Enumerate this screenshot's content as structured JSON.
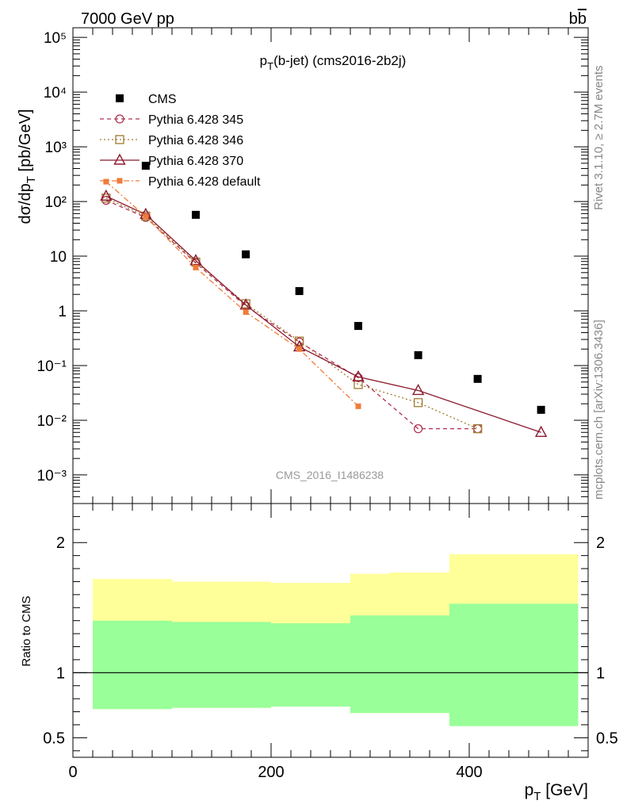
{
  "chart_data": [
    {
      "type": "scatter",
      "panel": "main",
      "title": "p_T(b-jet) (cms2016-2b2j)",
      "corner_left": "7000 GeV pp",
      "corner_right": "b̅b",
      "ylabel": "dσ/dp_T [pb/GeV]",
      "yscale": "log",
      "ylim": [
        0.0003,
        150000
      ],
      "xlim": [
        0,
        520
      ],
      "y_tick_labels": [
        "10⁻³",
        "10⁻²",
        "10⁻¹",
        "1",
        "10",
        "10²",
        "10³",
        "10⁴",
        "10⁵"
      ],
      "watermark": "CMS_2016_I1486238",
      "side_label_top": "Rivet 3.1.10, ≥ 2.7M events",
      "side_label_bottom": "mcplots.cern.ch [arXiv:1306.3436]",
      "legend_position": "top-left",
      "series": [
        {
          "name": "CMS",
          "color": "#000000",
          "marker": "filled-square",
          "x": [
            73.5,
            124,
            174.5,
            228.5,
            288,
            348.5,
            408.5,
            472.5
          ],
          "y": [
            450,
            57,
            10.8,
            2.3,
            0.53,
            0.155,
            0.057,
            0.0155
          ]
        },
        {
          "name": "Pythia 6.428 345",
          "color": "#b03050",
          "marker": "open-circle",
          "dash": "5,4",
          "x": [
            33.5,
            73.5,
            124,
            174.5,
            228.5,
            288,
            348.5,
            408.5
          ],
          "y": [
            105,
            51,
            7.5,
            1.22,
            0.27,
            0.06,
            0.007,
            0.007
          ]
        },
        {
          "name": "Pythia 6.428 346",
          "color": "#a07a30",
          "marker": "open-square",
          "dash": "2,3",
          "x": [
            33.5,
            73.5,
            124,
            174.5,
            228.5,
            288,
            348.5,
            408.5
          ],
          "y": [
            115,
            54,
            7.8,
            1.35,
            0.28,
            0.045,
            0.021,
            0.007
          ]
        },
        {
          "name": "Pythia 6.428 370",
          "color": "#8b1a2e",
          "marker": "open-triangle",
          "dash": "",
          "x": [
            33.5,
            73.5,
            124,
            174.5,
            228.5,
            288,
            348.5,
            472.5
          ],
          "y": [
            125,
            58,
            8.3,
            1.28,
            0.22,
            0.062,
            0.035,
            0.006
          ]
        },
        {
          "name": "Pythia 6.428 default",
          "color": "#f07c3a",
          "marker": "filled-square-small",
          "dash": "7,3,2,3",
          "x": [
            33.5,
            73.5,
            124,
            174.5,
            228.5,
            288
          ],
          "y": [
            230,
            53,
            6.2,
            0.95,
            0.2,
            0.018
          ]
        }
      ]
    },
    {
      "type": "area",
      "panel": "ratio",
      "xlabel": "p_T [GeV]",
      "ylabel": "Ratio to CMS",
      "xlim": [
        0,
        520
      ],
      "ylim": [
        0.35,
        2.3
      ],
      "x_ticks": [
        0,
        200,
        400
      ],
      "y_ticks": [
        0.5,
        1,
        2
      ],
      "reference_line": 1,
      "bins": [
        20,
        100,
        200,
        280,
        320,
        380,
        550
      ],
      "bins_note": "upper edge of last band shown at 510",
      "bands": [
        {
          "name": "outer",
          "color": "#ffff99",
          "low": [
            0.72,
            0.73,
            0.74,
            0.69,
            0.69,
            0.59,
            0.57,
            0.56
          ],
          "high": [
            1.72,
            1.7,
            1.69,
            1.76,
            1.77,
            1.91,
            1.93,
            1.94
          ]
        },
        {
          "name": "inner",
          "color": "#99ff99",
          "low": [
            0.72,
            0.73,
            0.74,
            0.69,
            0.69,
            0.59,
            0.57,
            0.56
          ],
          "high": [
            1.4,
            1.39,
            1.38,
            1.44,
            1.44,
            1.53,
            1.54,
            1.55
          ]
        }
      ]
    }
  ]
}
